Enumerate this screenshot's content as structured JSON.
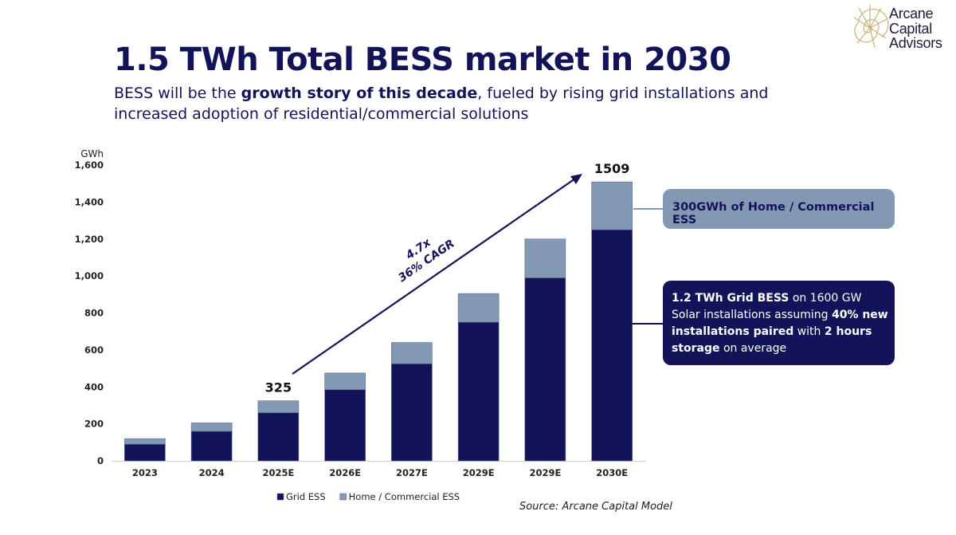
{
  "header": {
    "title": "1.5 TWh Total BESS market in 2030",
    "subtitle_pre": "BESS will be the ",
    "subtitle_bold": "growth story of this decade",
    "subtitle_post": ", fueled by rising grid installations and increased adoption of residential/commercial solutions"
  },
  "logo": {
    "line1": "Arcane",
    "line2": "Capital",
    "line3": "Advisors"
  },
  "chart_data": {
    "type": "bar",
    "stacked": true,
    "ylabel": "GWh",
    "ylim": [
      0,
      1600
    ],
    "yticks": [
      0,
      200,
      400,
      600,
      800,
      1000,
      1200,
      1400,
      1600
    ],
    "ytick_labels": [
      "0",
      "200",
      "400",
      "600",
      "800",
      "1,000",
      "1,200",
      "1,400",
      "1,600"
    ],
    "categories": [
      "2023",
      "2024",
      "2025E",
      "2026E",
      "2027E",
      "2029E",
      "2029E",
      "2030E"
    ],
    "series": [
      {
        "name": "Grid ESS",
        "color": "#13135a",
        "values": [
          90,
          160,
          260,
          385,
          525,
          750,
          990,
          1250
        ]
      },
      {
        "name": "Home / Commercial ESS",
        "color": "#8399b3",
        "values": [
          30,
          45,
          65,
          90,
          115,
          155,
          210,
          259
        ]
      }
    ],
    "total_labels": [
      {
        "category_index": 2,
        "text": "325"
      },
      {
        "category_index": 7,
        "text": "1509"
      }
    ],
    "growth_annotation": {
      "line1": "4.7x",
      "line2": "36% CAGR"
    },
    "legend_position": "bottom",
    "grid": false
  },
  "callouts": {
    "home": "300GWh of Home / Commercial ESS",
    "grid_b1": "1.2 TWh Grid BESS",
    "grid_t1": " on 1600 GW Solar installations assuming ",
    "grid_b2": "40% new installations paired",
    "grid_t2": " with ",
    "grid_b3": "2 hours storage",
    "grid_t3": " on average"
  },
  "source": "Source: Arcane Capital Model"
}
